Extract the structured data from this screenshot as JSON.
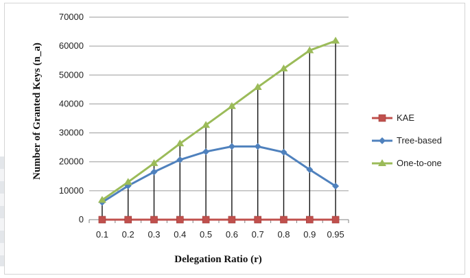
{
  "chart_data": {
    "type": "line",
    "x_tick_labels": [
      "0.1",
      "0.2",
      "0.3",
      "0.4",
      "0.5",
      "0.6",
      "0.7",
      "0.8",
      "0.9",
      "0.95"
    ],
    "x": [
      0.1,
      0.2,
      0.3,
      0.4,
      0.5,
      0.6,
      0.7,
      0.8,
      0.9,
      0.95
    ],
    "y_ticks": [
      0,
      10000,
      20000,
      30000,
      40000,
      50000,
      60000,
      70000
    ],
    "y_tick_labels": [
      "0",
      "10000",
      "20000",
      "30000",
      "40000",
      "50000",
      "60000",
      "70000"
    ],
    "ylim": [
      0,
      70000
    ],
    "xlabel": "Delegation Ratio (r)",
    "ylabel": "Number of Granted Keys (n_a)",
    "grid": "horizontal",
    "legend_position": "right",
    "drop_lines": "vertical lines from One-to-one down to 0 at each x",
    "series": [
      {
        "name": "KAE",
        "color": "#c0504d",
        "marker": "square",
        "values": [
          0,
          0,
          0,
          0,
          0,
          0,
          0,
          0,
          0,
          0
        ]
      },
      {
        "name": "Tree-based",
        "color": "#4f81bd",
        "marker": "diamond",
        "values": [
          6000,
          11700,
          16500,
          20700,
          23500,
          25300,
          25300,
          23300,
          17300,
          11600
        ]
      },
      {
        "name": "One-to-one",
        "color": "#9bbb59",
        "marker": "triangle",
        "values": [
          6800,
          13000,
          19500,
          26300,
          32700,
          39200,
          45800,
          52200,
          58500,
          61800
        ]
      }
    ]
  }
}
